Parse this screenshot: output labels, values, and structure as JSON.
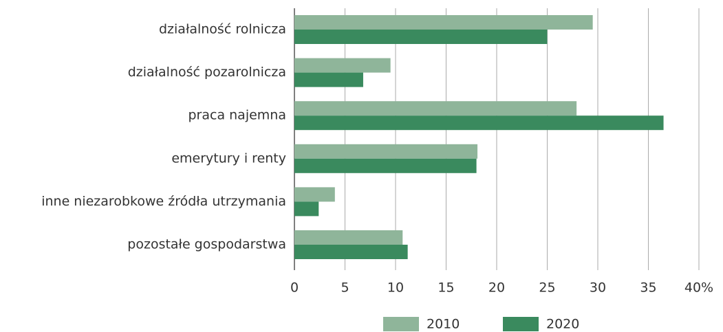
{
  "chart_data": {
    "type": "hbar",
    "categories": [
      "działalność rolnicza",
      "działalność pozarolnicza",
      "praca najemna",
      "emerytury i renty",
      "inne niezarobkowe źródła utrzymania",
      "pozostałe gospodarstwa"
    ],
    "series": [
      {
        "name": "2010",
        "color": "#8fb59a",
        "values": [
          29.5,
          9.5,
          27.9,
          18.1,
          4.0,
          10.7
        ]
      },
      {
        "name": "2020",
        "color": "#3a8a5e",
        "values": [
          25.0,
          6.8,
          36.5,
          18.0,
          2.4,
          11.2
        ]
      }
    ],
    "xlim": [
      0,
      40
    ],
    "xticks": [
      0,
      5,
      10,
      15,
      20,
      25,
      30,
      35,
      {
        "value": 40,
        "label": "40%"
      }
    ],
    "grid": true,
    "legend": "bottom"
  }
}
